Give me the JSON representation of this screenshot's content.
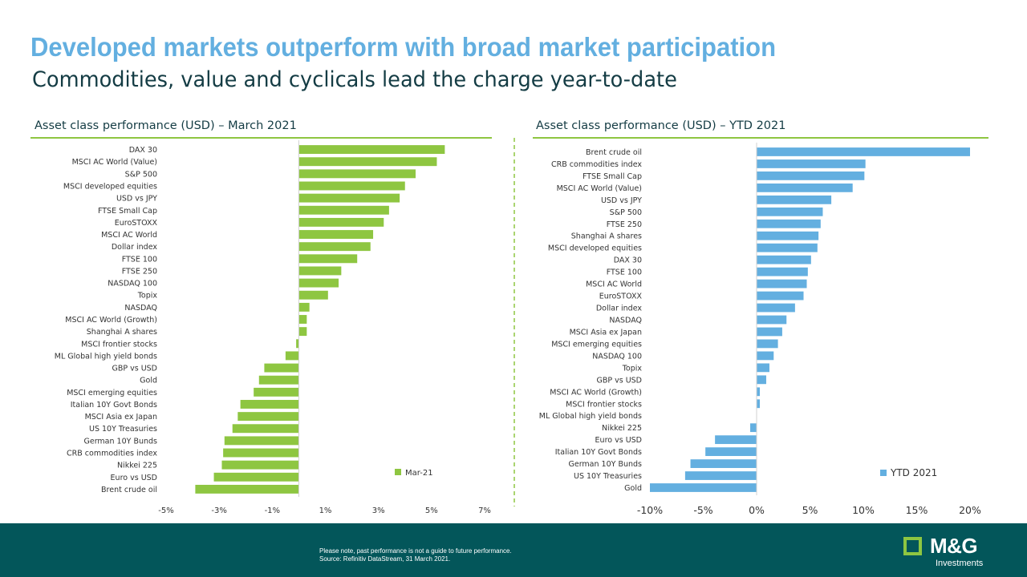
{
  "header": {
    "title": "Developed markets outperform with broad market participation",
    "subtitle": "Commodities, value and cyclicals lead the charge year-to-date"
  },
  "colors": {
    "title": "#63afe0",
    "subtitle": "#143c44",
    "march_bar": "#8ec641",
    "ytd_bar": "#63afe0",
    "divider": "#8ec641",
    "footer": "#03565a"
  },
  "chart_data": [
    {
      "type": "bar",
      "orientation": "horizontal",
      "title": "Asset class performance (USD) – March 2021",
      "categories": [
        "DAX 30",
        "MSCI AC World (Value)",
        "S&P 500",
        "MSCI developed equities",
        "USD vs JPY",
        "FTSE Small Cap",
        "EuroSTOXX",
        "MSCI AC World",
        "Dollar index",
        "FTSE 100",
        "FTSE 250",
        "NASDAQ 100",
        "Topix",
        "NASDAQ",
        "MSCI AC World (Growth)",
        "Shanghai A shares",
        "MSCI frontier stocks",
        "ML Global high yield bonds",
        "GBP vs USD",
        "Gold",
        "MSCI emerging equities",
        "Italian 10Y Govt Bonds",
        "MSCI Asia ex Japan",
        "US 10Y Treasuries",
        "German 10Y Bunds",
        "CRB commodities index",
        "Nikkei 225",
        "Euro vs USD",
        "Brent crude oil"
      ],
      "series": [
        {
          "name": "Mar-21",
          "values": [
            5.5,
            5.2,
            4.4,
            4.0,
            3.8,
            3.4,
            3.2,
            2.8,
            2.7,
            2.2,
            1.6,
            1.5,
            1.1,
            0.4,
            0.3,
            0.3,
            -0.1,
            -0.5,
            -1.3,
            -1.5,
            -1.7,
            -2.2,
            -2.3,
            -2.5,
            -2.8,
            -2.85,
            -2.9,
            -3.2,
            -3.9
          ]
        }
      ],
      "xlim": [
        -5,
        7
      ],
      "xticks": [
        -5,
        -3,
        -1,
        1,
        3,
        5,
        7
      ],
      "tick_labels": [
        "-5%",
        "-3%",
        "-1%",
        "1%",
        "3%",
        "5%",
        "7%"
      ],
      "legend": "bottom-right",
      "grid": false
    },
    {
      "type": "bar",
      "orientation": "horizontal",
      "title": "Asset class performance (USD) – YTD 2021",
      "categories": [
        "Brent crude oil",
        "CRB commodities index",
        "FTSE Small Cap",
        "MSCI AC World (Value)",
        "USD vs JPY",
        "S&P 500",
        "FTSE 250",
        "Shanghai A shares",
        "MSCI developed equities",
        "DAX 30",
        "FTSE 100",
        "MSCI AC World",
        "EuroSTOXX",
        "Dollar index",
        "NASDAQ",
        "MSCI Asia ex Japan",
        "MSCI emerging equities",
        "NASDAQ 100",
        "Topix",
        "GBP vs USD",
        "MSCI AC World (Growth)",
        "MSCI frontier stocks",
        "ML Global high yield bonds",
        "Nikkei 225",
        "Euro vs USD",
        "Italian 10Y Govt Bonds",
        "German 10Y Bunds",
        "US 10Y Treasuries",
        "Gold"
      ],
      "series": [
        {
          "name": "YTD 2021",
          "values": [
            20.0,
            10.2,
            10.1,
            9.0,
            7.0,
            6.2,
            6.0,
            5.8,
            5.7,
            5.1,
            4.8,
            4.7,
            4.4,
            3.6,
            2.8,
            2.4,
            2.0,
            1.6,
            1.2,
            0.9,
            0.3,
            0.3,
            0.0,
            -0.6,
            -3.9,
            -4.8,
            -6.2,
            -6.7,
            -10.0
          ]
        }
      ],
      "xlim": [
        -10,
        20
      ],
      "xticks": [
        -10,
        -5,
        0,
        5,
        10,
        15,
        20
      ],
      "tick_labels": [
        "-10%",
        "-5%",
        "0%",
        "5%",
        "10%",
        "15%",
        "20%"
      ],
      "legend": "bottom-right",
      "grid": false
    }
  ],
  "footer": {
    "disclaimer_line1": "Please note, past performance is not a guide to future performance.",
    "disclaimer_line2": "Source: Refinitiv DataStream, 31 March 2021.",
    "logo_text": "M&G",
    "logo_sub": "Investments"
  }
}
